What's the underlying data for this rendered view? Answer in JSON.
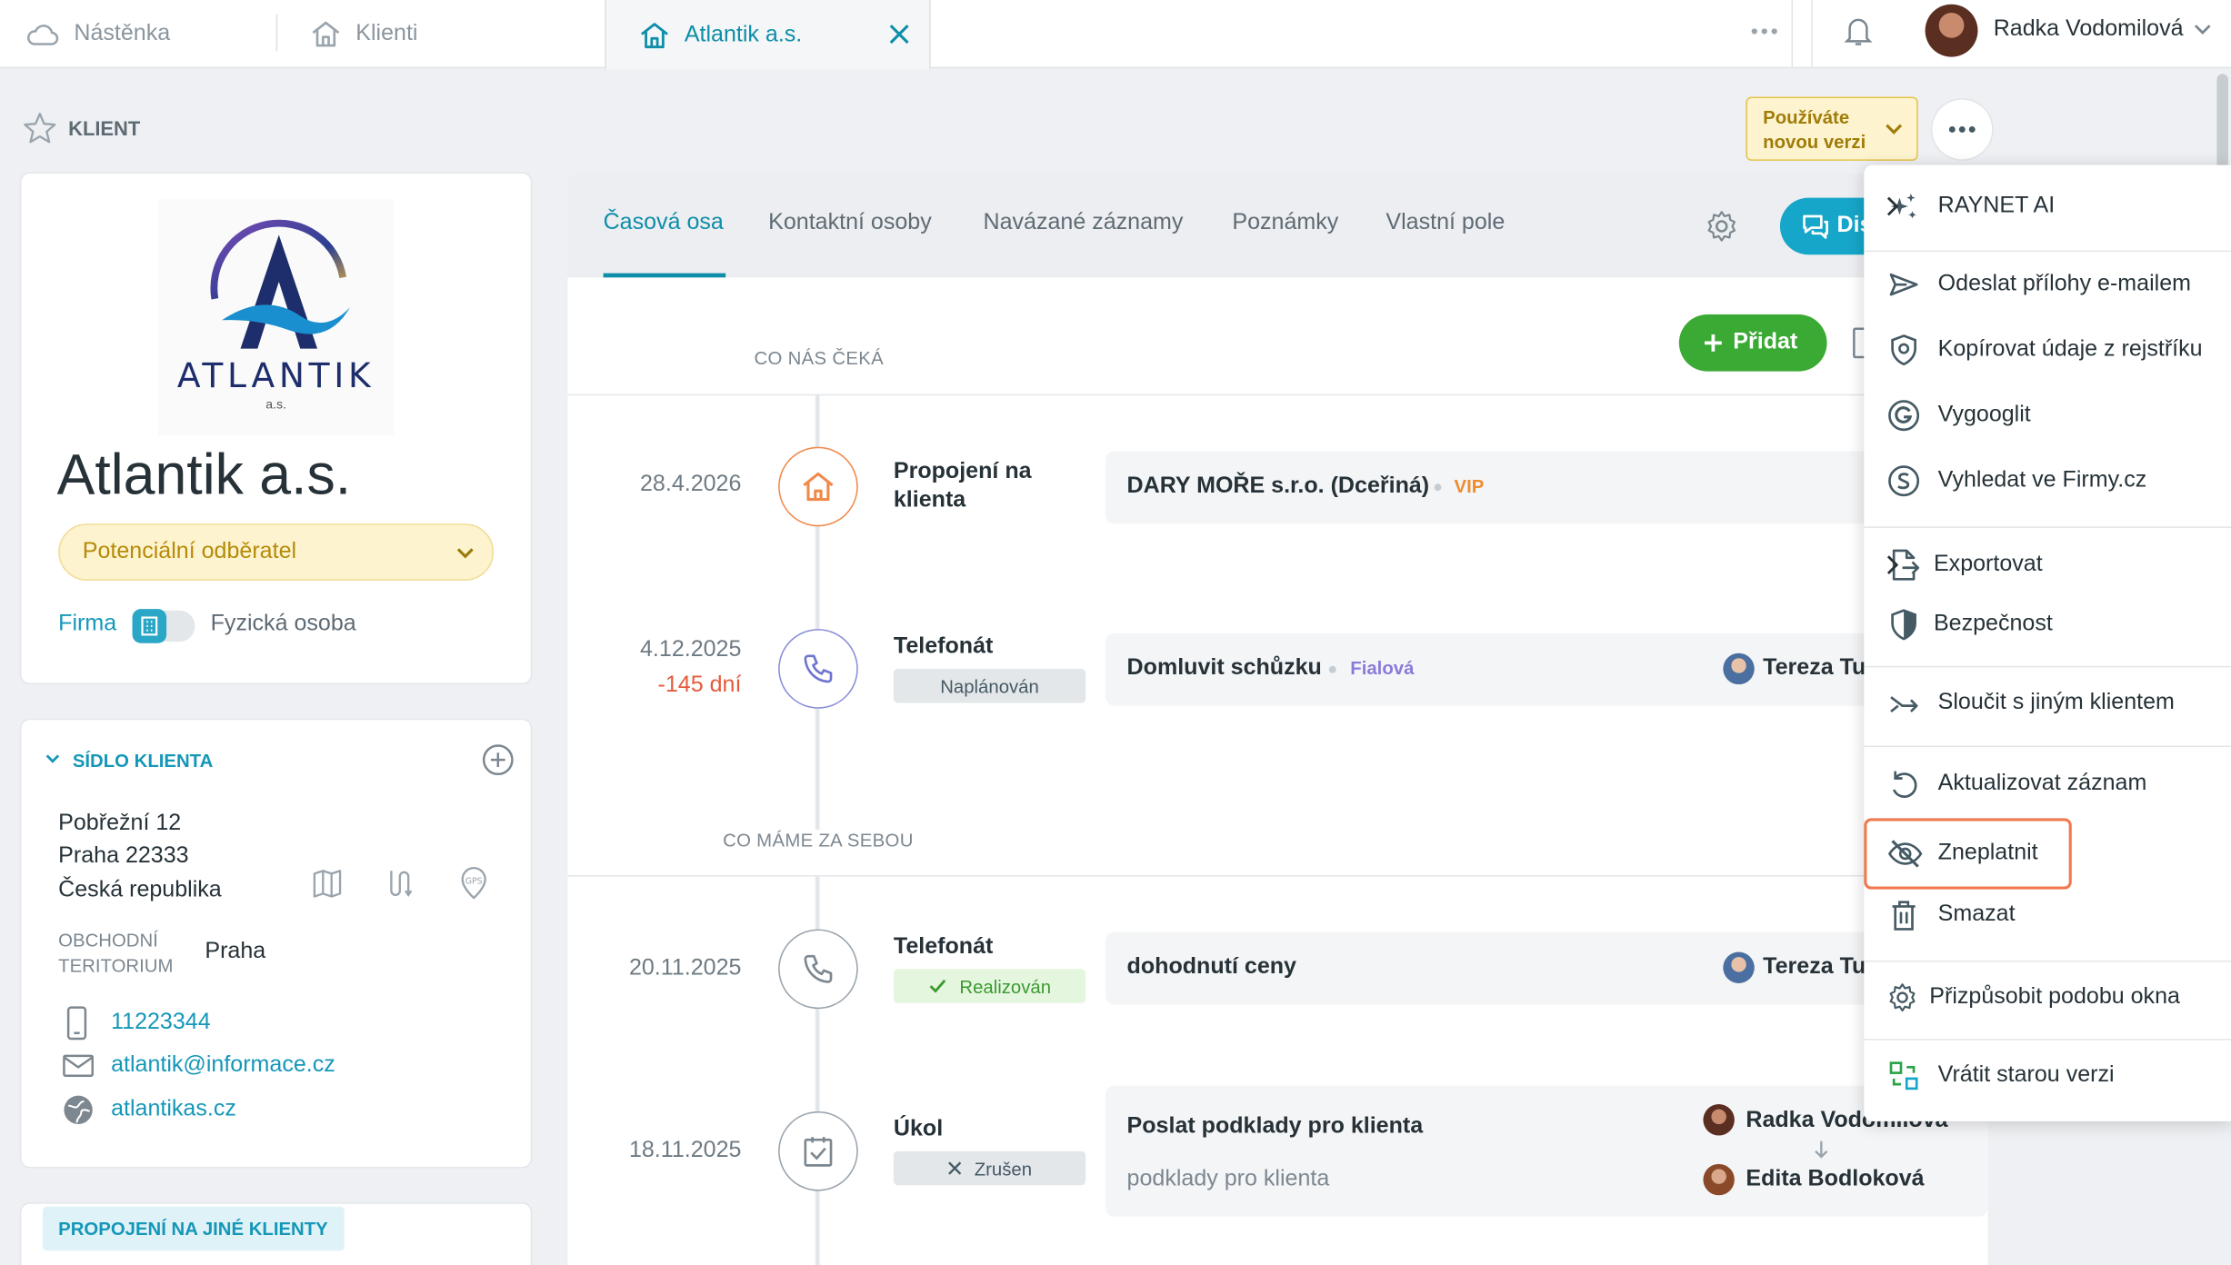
{
  "topbar": {
    "tabs": [
      {
        "label": "Nástěnka",
        "icon": "cloud-icon"
      },
      {
        "label": "Klienti",
        "icon": "home-icon"
      },
      {
        "label": "Atlantik a.s.",
        "icon": "home-icon",
        "active": true
      }
    ],
    "user_name": "Radka Vodomilová"
  },
  "header": {
    "section_label": "KLIENT",
    "new_version_badge": [
      "Používáte",
      "novou verzi"
    ]
  },
  "client": {
    "logo_text": "ATLANTIK",
    "logo_subtext": "a.s.",
    "name": "Atlantik a.s.",
    "status": "Potenciální odběratel",
    "toggle_left": "Firma",
    "toggle_right": "Fyzická osoba"
  },
  "address_card": {
    "title": "SÍDLO KLIENTA",
    "street": "Pobřežní 12",
    "city": "Praha 22333",
    "country": "Česká republika",
    "territory_label": [
      "OBCHODNÍ",
      "TERITORIUM"
    ],
    "territory_value": "Praha",
    "phone": "11223344",
    "email": "atlantik@informace.cz",
    "web": "atlantikas.cz"
  },
  "links_card": {
    "title": "PROPOJENÍ NA JINÉ KLIENTY"
  },
  "main_tabs": [
    "Časová osa",
    "Kontaktní osoby",
    "Navázané záznamy",
    "Poznámky",
    "Vlastní pole"
  ],
  "discuss_button": "Dis",
  "add_button": "Přidat",
  "upcoming_label": "CO NÁS ČEKÁ",
  "past_label": "CO MÁME ZA SEBOU",
  "timeline": [
    {
      "date": "28.4.2026",
      "type": [
        "Propojení na",
        "klienta"
      ],
      "title": "DARY MOŘE s.r.o. (Dceřiná)",
      "tag": "VIP"
    },
    {
      "date": "4.12.2025",
      "overdue": "-145 dní",
      "type": [
        "Telefonát"
      ],
      "badge": "Naplánován",
      "title": "Domluvit schůzku",
      "tag": "Fialová",
      "person": "Tereza Tu"
    },
    {
      "date": "20.11.2025",
      "type": [
        "Telefonát"
      ],
      "badge": "Realizován",
      "title": "dohodnutí ceny",
      "person": "Tereza Tu"
    },
    {
      "date": "18.11.2025",
      "type": [
        "Úkol"
      ],
      "badge": "Zrušen",
      "title": "Poslat podklady pro klienta",
      "subtitle": "podklady pro klienta",
      "person_from": "Radka Vodomilová",
      "person_to": "Edita Bodloková"
    }
  ],
  "menu": {
    "items": [
      {
        "label": "RAYNET AI",
        "icon": "sparkle-icon",
        "submenu": true
      },
      {
        "label": "Odeslat přílohy e-mailem",
        "icon": "send-icon"
      },
      {
        "label": "Kopírovat údaje z rejstříku",
        "icon": "shield-icon"
      },
      {
        "label": "Vygooglit",
        "icon": "google-icon"
      },
      {
        "label": "Vyhledat ve Firmy.cz",
        "icon": "firmy-icon"
      },
      {
        "label": "Exportovat",
        "icon": "export-icon",
        "submenu": true
      },
      {
        "label": "Bezpečnost",
        "icon": "security-icon"
      },
      {
        "label": "Sloučit s jiným klientem",
        "icon": "merge-icon"
      },
      {
        "label": "Aktualizovat záznam",
        "icon": "refresh-icon"
      },
      {
        "label": "Zneplatnit",
        "icon": "eye-off-icon",
        "highlighted": true
      },
      {
        "label": "Smazat",
        "icon": "trash-icon"
      },
      {
        "label": "Přizpůsobit podobu okna",
        "icon": "gear-icon"
      },
      {
        "label": "Vrátit starou verzi",
        "icon": "switch-version-icon"
      }
    ]
  },
  "colors": {
    "accent": "#0e8ea8",
    "add_green": "#3aaa35",
    "status_yellow": "#fdf3cf",
    "overdue_red": "#e65a3c",
    "highlight_orange": "#f07a4f"
  }
}
